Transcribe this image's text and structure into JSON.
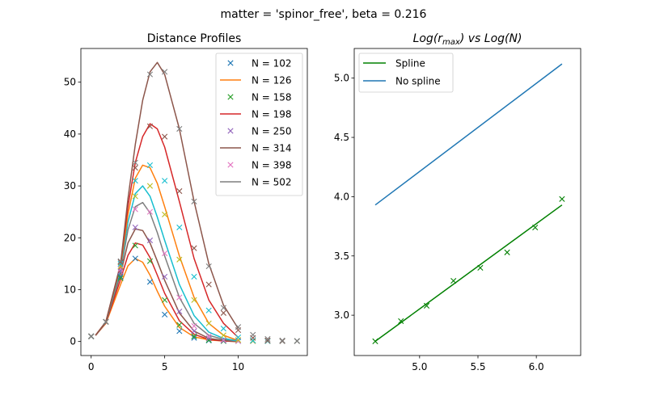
{
  "figure": {
    "suptitle": "matter = 'spinor_free', beta = 0.216"
  },
  "chart_data": [
    {
      "type": "line",
      "title": "Distance Profiles",
      "xlabel": "",
      "ylabel": "",
      "xlim": [
        -0.7,
        14.7
      ],
      "ylim": [
        -2.7,
        56.5
      ],
      "xticks": [
        0,
        5,
        10
      ],
      "yticks": [
        0,
        10,
        20,
        30,
        40,
        50
      ],
      "grid": false,
      "legend_position": "top-right",
      "legend": [
        {
          "label": "N = 102",
          "style": "marker",
          "color": "#1f77b4"
        },
        {
          "label": "N = 126",
          "style": "line",
          "color": "#ff7f0e"
        },
        {
          "label": "N = 158",
          "style": "marker",
          "color": "#2ca02c"
        },
        {
          "label": "N = 198",
          "style": "line",
          "color": "#d62728"
        },
        {
          "label": "N = 250",
          "style": "marker",
          "color": "#9467bd"
        },
        {
          "label": "N = 314",
          "style": "line",
          "color": "#8c564b"
        },
        {
          "label": "N = 398",
          "style": "marker",
          "color": "#e377c2"
        },
        {
          "label": "N = 502",
          "style": "line",
          "color": "#7f7f7f"
        }
      ],
      "markers": [
        {
          "color": "#1f77b4",
          "x": [
            0,
            1,
            2,
            3,
            4,
            5,
            6,
            7,
            8,
            9,
            10,
            11,
            12,
            13,
            14
          ],
          "y": [
            1.0,
            3.8,
            12.5,
            16.0,
            11.5,
            5.2,
            2.0,
            0.7,
            0.2,
            0.1,
            0.1,
            0.1,
            0.1,
            0.1,
            0.1
          ]
        },
        {
          "color": "#2ca02c",
          "x": [
            0,
            1,
            2,
            3,
            4,
            5,
            6,
            7,
            8,
            9,
            10,
            11,
            12,
            13,
            14
          ],
          "y": [
            1.0,
            3.8,
            12.2,
            18.5,
            15.5,
            8.0,
            3.2,
            1.0,
            0.3,
            0.1,
            0.1,
            0.1,
            0.1,
            0.1,
            0.1
          ]
        },
        {
          "color": "#9467bd",
          "x": [
            0,
            1,
            2,
            3,
            4,
            5,
            6,
            7,
            8,
            9,
            10,
            11,
            12,
            13,
            14
          ],
          "y": [
            1.0,
            3.8,
            13.5,
            22.0,
            19.5,
            12.5,
            5.8,
            2.0,
            0.6,
            0.2,
            0.1,
            0.1,
            0.1,
            0.1,
            0.1
          ]
        },
        {
          "color": "#e377c2",
          "x": [
            0,
            1,
            2,
            3,
            4,
            5,
            6,
            7,
            8,
            9,
            10,
            11,
            12,
            13,
            14
          ],
          "y": [
            1.0,
            3.8,
            14.0,
            25.5,
            25.0,
            17.0,
            8.5,
            3.0,
            1.0,
            0.3,
            0.1,
            0.1,
            0.1,
            0.1,
            0.1
          ]
        },
        {
          "color": "#bcbd22",
          "x": [
            0,
            1,
            2,
            3,
            4,
            5,
            6,
            7,
            8,
            9,
            10,
            11,
            12,
            13,
            14
          ],
          "y": [
            1.0,
            3.8,
            14.5,
            28.0,
            30.0,
            24.5,
            15.8,
            8.0,
            3.5,
            1.2,
            0.3,
            0.1,
            0.1,
            0.1,
            0.1
          ]
        },
        {
          "color": "#17becf",
          "x": [
            0,
            1,
            2,
            3,
            4,
            5,
            6,
            7,
            8,
            9,
            10,
            11,
            12,
            13,
            14
          ],
          "y": [
            1.0,
            3.8,
            15.0,
            31.0,
            34.0,
            31.0,
            22.0,
            12.5,
            6.0,
            2.5,
            0.8,
            0.2,
            0.1,
            0.1,
            0.1
          ]
        },
        {
          "color": "#8c564b",
          "x": [
            0,
            1,
            2,
            3,
            4,
            5,
            6,
            7,
            8,
            9,
            10,
            11,
            12,
            13,
            14
          ],
          "y": [
            1.0,
            3.8,
            15.3,
            33.5,
            41.5,
            39.5,
            29.0,
            18.0,
            11.0,
            5.5,
            2.2,
            0.7,
            0.2,
            0.1,
            0.1
          ]
        },
        {
          "color": "#7f7f7f",
          "x": [
            0,
            1,
            2,
            3,
            4,
            5,
            6,
            7,
            8,
            9,
            10,
            11,
            12,
            13,
            14
          ],
          "y": [
            1.0,
            3.8,
            15.5,
            34.5,
            51.5,
            52.0,
            41.0,
            27.0,
            14.5,
            6.5,
            2.8,
            1.3,
            0.5,
            0.2,
            0.1
          ]
        }
      ],
      "curves": [
        {
          "color": "#ff7f0e",
          "x": [
            0.3,
            1,
            2,
            2.5,
            3,
            3.5,
            4,
            4.5,
            5,
            6,
            7,
            8,
            9,
            10
          ],
          "y": [
            1.2,
            3.5,
            11.0,
            14.6,
            16.0,
            15.3,
            12.8,
            9.7,
            6.8,
            2.7,
            0.9,
            0.3,
            0.1,
            0.0
          ]
        },
        {
          "color": "#d62728",
          "x": [
            0.3,
            1,
            2,
            2.5,
            3,
            3.5,
            4,
            4.5,
            5,
            6,
            7,
            8,
            9,
            10
          ],
          "y": [
            1.2,
            3.6,
            12.0,
            16.6,
            19.0,
            18.6,
            16.2,
            12.8,
            9.3,
            4.0,
            1.4,
            0.4,
            0.1,
            0.0
          ]
        },
        {
          "color": "#8c564b",
          "x": [
            0.3,
            1,
            2,
            2.5,
            3,
            3.5,
            4,
            4.5,
            5,
            6,
            7,
            8,
            9,
            10
          ],
          "y": [
            1.2,
            3.7,
            13.0,
            19.0,
            21.7,
            21.4,
            19.0,
            15.5,
            11.8,
            5.5,
            2.0,
            0.6,
            0.2,
            0.0
          ]
        },
        {
          "color": "#7f7f7f",
          "x": [
            0.3,
            1,
            2,
            2.5,
            3,
            3.5,
            4,
            4.5,
            5,
            6,
            7,
            8,
            9,
            10
          ],
          "y": [
            1.2,
            3.7,
            13.5,
            21.5,
            26.0,
            26.8,
            24.8,
            21.0,
            16.5,
            8.5,
            3.5,
            1.2,
            0.4,
            0.1
          ]
        },
        {
          "color": "#17becf",
          "x": [
            0.3,
            1,
            2,
            2.5,
            3,
            3.5,
            4,
            4.5,
            5,
            6,
            7,
            8,
            9,
            10
          ],
          "y": [
            1.2,
            3.7,
            14.0,
            23.0,
            28.5,
            30.0,
            28.0,
            24.0,
            19.5,
            11.0,
            5.0,
            1.8,
            0.6,
            0.1
          ]
        },
        {
          "color": "#ff7f0e",
          "x": [
            0.3,
            1,
            2,
            2.5,
            3,
            3.5,
            4,
            4.5,
            5,
            6,
            7,
            8,
            9,
            10
          ],
          "y": [
            1.2,
            3.8,
            14.5,
            24.5,
            31.5,
            34.0,
            33.5,
            30.5,
            26.0,
            16.5,
            8.5,
            3.5,
            1.2,
            0.2
          ]
        },
        {
          "color": "#d62728",
          "x": [
            0.3,
            1,
            2,
            2.5,
            3,
            3.5,
            4,
            4.5,
            5,
            6,
            7,
            8,
            9,
            10
          ],
          "y": [
            1.2,
            3.8,
            14.8,
            26.0,
            34.5,
            39.5,
            42.0,
            41.0,
            37.5,
            27.0,
            16.0,
            8.0,
            3.5,
            0.8
          ]
        },
        {
          "color": "#8c564b",
          "x": [
            0.3,
            1,
            2,
            2.5,
            3,
            3.5,
            4,
            4.5,
            5,
            6,
            7,
            8,
            9,
            10
          ],
          "y": [
            1.2,
            3.8,
            15.0,
            27.5,
            38.0,
            46.5,
            52.0,
            53.8,
            51.5,
            41.0,
            27.0,
            15.0,
            7.0,
            2.5
          ]
        }
      ]
    },
    {
      "type": "line",
      "title": "Log(r_max) vs Log(N)",
      "title_parts": {
        "a": "Log(",
        "b": "r",
        "sub": "max",
        "c": ") vs Log(N)"
      },
      "xlabel": "",
      "ylabel": "",
      "xlim": [
        4.44,
        6.38
      ],
      "ylim": [
        2.66,
        5.25
      ],
      "xticks": [
        5.0,
        5.5,
        6.0
      ],
      "xtick_labels": [
        "5.0",
        "5.5",
        "6.0"
      ],
      "yticks": [
        3.0,
        3.5,
        4.0,
        4.5,
        5.0
      ],
      "ytick_labels": [
        "3.0",
        "3.5",
        "4.0",
        "4.5",
        "5.0"
      ],
      "grid": false,
      "legend_position": "top-left",
      "series": [
        {
          "name": "Spline",
          "color": "#008000",
          "style": "line",
          "x": [
            4.62,
            6.22
          ],
          "y": [
            2.78,
            3.93
          ]
        },
        {
          "name": "No spline",
          "color": "#1f77b4",
          "style": "line",
          "x": [
            4.62,
            6.22
          ],
          "y": [
            3.93,
            5.12
          ]
        }
      ],
      "points": {
        "color": "#008000",
        "x": [
          4.62,
          4.84,
          5.06,
          5.29,
          5.52,
          5.75,
          5.99,
          6.22
        ],
        "y": [
          2.78,
          2.95,
          3.08,
          3.29,
          3.4,
          3.53,
          3.74,
          3.98
        ]
      }
    }
  ]
}
